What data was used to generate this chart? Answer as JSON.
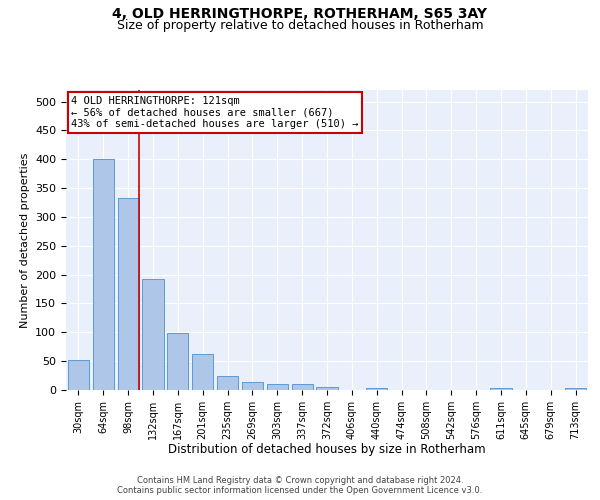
{
  "title": "4, OLD HERRINGTHORPE, ROTHERHAM, S65 3AY",
  "subtitle": "Size of property relative to detached houses in Rotherham",
  "xlabel": "Distribution of detached houses by size in Rotherham",
  "ylabel": "Number of detached properties",
  "categories": [
    "30sqm",
    "64sqm",
    "98sqm",
    "132sqm",
    "167sqm",
    "201sqm",
    "235sqm",
    "269sqm",
    "303sqm",
    "337sqm",
    "372sqm",
    "406sqm",
    "440sqm",
    "474sqm",
    "508sqm",
    "542sqm",
    "576sqm",
    "611sqm",
    "645sqm",
    "679sqm",
    "713sqm"
  ],
  "values": [
    52,
    401,
    332,
    192,
    99,
    63,
    24,
    14,
    10,
    10,
    6,
    0,
    4,
    0,
    0,
    0,
    0,
    4,
    0,
    0,
    4
  ],
  "bar_color": "#aec6e8",
  "bar_edge_color": "#5b9bd5",
  "vline_x_index": 2,
  "annotation_line1": "4 OLD HERRINGTHORPE: 121sqm",
  "annotation_line2": "← 56% of detached houses are smaller (667)",
  "annotation_line3": "43% of semi-detached houses are larger (510) →",
  "annotation_box_color": "#ffffff",
  "annotation_box_edge": "#cc0000",
  "vline_color": "#cc0000",
  "footer_line1": "Contains HM Land Registry data © Crown copyright and database right 2024.",
  "footer_line2": "Contains public sector information licensed under the Open Government Licence v3.0.",
  "bg_color": "#eaf0fb",
  "ylim": [
    0,
    520
  ],
  "yticks": [
    0,
    50,
    100,
    150,
    200,
    250,
    300,
    350,
    400,
    450,
    500
  ],
  "title_fontsize": 10,
  "subtitle_fontsize": 9
}
